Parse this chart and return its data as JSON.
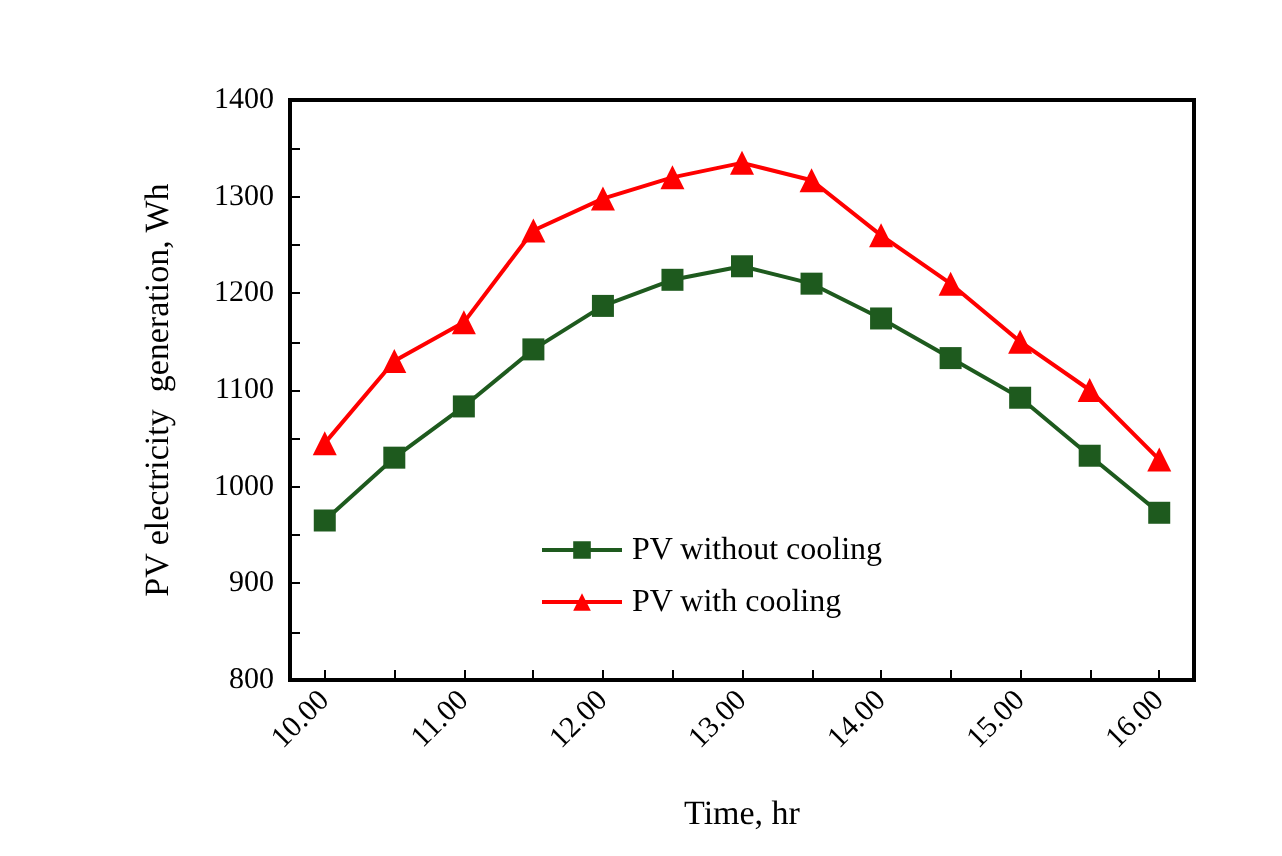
{
  "chart_data": {
    "type": "line",
    "xlabel": "Time, hr",
    "ylabel": "PV electricity  generation, Wh",
    "x": [
      10,
      10.5,
      11,
      11.5,
      12,
      12.5,
      13,
      13.5,
      14,
      14.5,
      15,
      15.5,
      16
    ],
    "series": [
      {
        "name": "PV without cooling",
        "color": "#1e5a1e",
        "marker": "square",
        "values": [
          965,
          1030,
          1083,
          1142,
          1187,
          1214,
          1228,
          1210,
          1174,
          1133,
          1092,
          1032,
          973
        ]
      },
      {
        "name": "PV with cooling",
        "color": "#ff0000",
        "marker": "triangle",
        "values": [
          1045,
          1130,
          1170,
          1265,
          1298,
          1320,
          1335,
          1317,
          1260,
          1210,
          1150,
          1100,
          1028
        ]
      }
    ],
    "xlim": [
      9.75,
      16.25
    ],
    "xticks": [
      {
        "value": 10,
        "label": "10.00"
      },
      {
        "value": 10.5,
        "label": null
      },
      {
        "value": 11,
        "label": "11.00"
      },
      {
        "value": 11.5,
        "label": null
      },
      {
        "value": 12,
        "label": "12.00"
      },
      {
        "value": 12.5,
        "label": null
      },
      {
        "value": 13,
        "label": "13.00"
      },
      {
        "value": 13.5,
        "label": null
      },
      {
        "value": 14,
        "label": "14.00"
      },
      {
        "value": 14.5,
        "label": null
      },
      {
        "value": 15,
        "label": "15.00"
      },
      {
        "value": 15.5,
        "label": null
      },
      {
        "value": 16,
        "label": "16.00"
      }
    ],
    "ylim": [
      800,
      1400
    ],
    "yticks": [
      800,
      {
        "value": 850,
        "label": null
      },
      900,
      {
        "value": 950,
        "label": null
      },
      1000,
      {
        "value": 1050,
        "label": null
      },
      1100,
      {
        "value": 1150,
        "label": null
      },
      1200,
      {
        "value": 1250,
        "label": null
      },
      1300,
      {
        "value": 1350,
        "label": null
      },
      1400
    ],
    "grid": false,
    "legend": "bottom",
    "line_style": "solid"
  }
}
